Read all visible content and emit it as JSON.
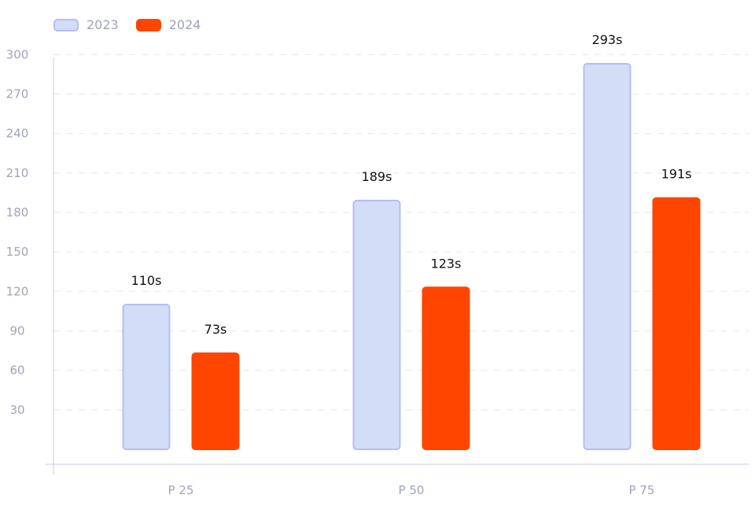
{
  "chart_data": {
    "type": "bar",
    "categories": [
      "P 25",
      "P 50",
      "P 75"
    ],
    "series": [
      {
        "name": "2023",
        "values": [
          110,
          189,
          293
        ],
        "labels": [
          "110s",
          "189s",
          "293s"
        ],
        "color": "#d2ddf7",
        "stroke": "#b4bdf7"
      },
      {
        "name": "2024",
        "values": [
          73,
          123,
          191
        ],
        "labels": [
          "73s",
          "123s",
          "191s"
        ],
        "color": "#ff4500",
        "stroke": "#ff4500"
      }
    ],
    "yticks": [
      30,
      60,
      90,
      120,
      150,
      180,
      210,
      240,
      270,
      300
    ],
    "ylim": [
      0,
      300
    ],
    "grid": true,
    "legend_position": "top-left",
    "title": "",
    "xlabel": "",
    "ylabel": ""
  }
}
